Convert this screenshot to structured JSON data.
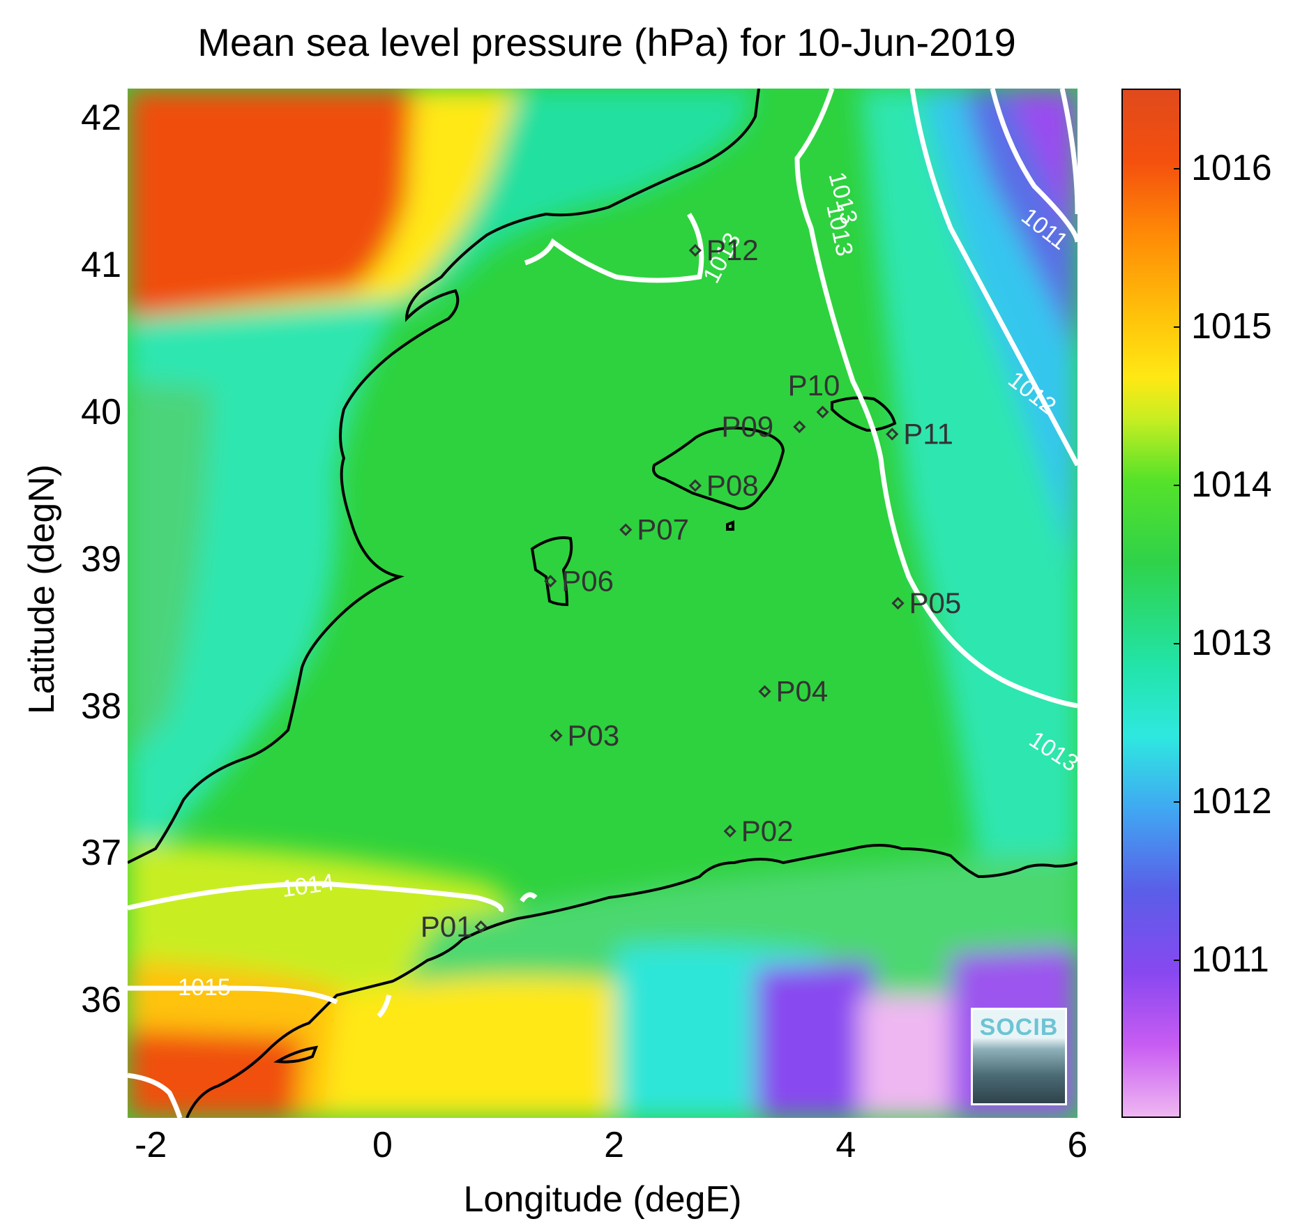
{
  "title": "Mean sea level pressure (hPa) for 10-Jun-2019",
  "xlabel": "Longitude (degE)",
  "ylabel": "Latitude (degN)",
  "x_ticks": [
    "-2",
    "0",
    "2",
    "4",
    "6"
  ],
  "y_ticks": [
    "42",
    "41",
    "40",
    "39",
    "38",
    "37",
    "36"
  ],
  "colorbar": {
    "ticks": [
      "1016",
      "1015",
      "1014",
      "1013",
      "1012",
      "1011"
    ],
    "range": [
      1010,
      1016.5
    ]
  },
  "contours": [
    "1011",
    "1012",
    "1013",
    "1013",
    "1013",
    "1013",
    "1014",
    "1015"
  ],
  "stations": [
    {
      "label": "P01",
      "lon": 0.85,
      "lat": 36.5
    },
    {
      "label": "P02",
      "lon": 3.0,
      "lat": 37.15
    },
    {
      "label": "P03",
      "lon": 1.5,
      "lat": 37.8
    },
    {
      "label": "P04",
      "lon": 3.3,
      "lat": 38.1
    },
    {
      "label": "P05",
      "lon": 4.45,
      "lat": 38.7
    },
    {
      "label": "P06",
      "lon": 1.45,
      "lat": 38.85
    },
    {
      "label": "P07",
      "lon": 2.1,
      "lat": 39.2
    },
    {
      "label": "P08",
      "lon": 2.7,
      "lat": 39.5
    },
    {
      "label": "P09",
      "lon": 3.6,
      "lat": 39.9
    },
    {
      "label": "P10",
      "lon": 3.8,
      "lat": 40.0
    },
    {
      "label": "P11",
      "lon": 4.4,
      "lat": 39.85
    },
    {
      "label": "P12",
      "lon": 2.7,
      "lat": 41.1
    }
  ],
  "logo_text": "SOCIB",
  "colors": {
    "coastline": "#000000",
    "contour": "#ffffff",
    "marker": "#333333",
    "sea": "#2ed23e"
  }
}
